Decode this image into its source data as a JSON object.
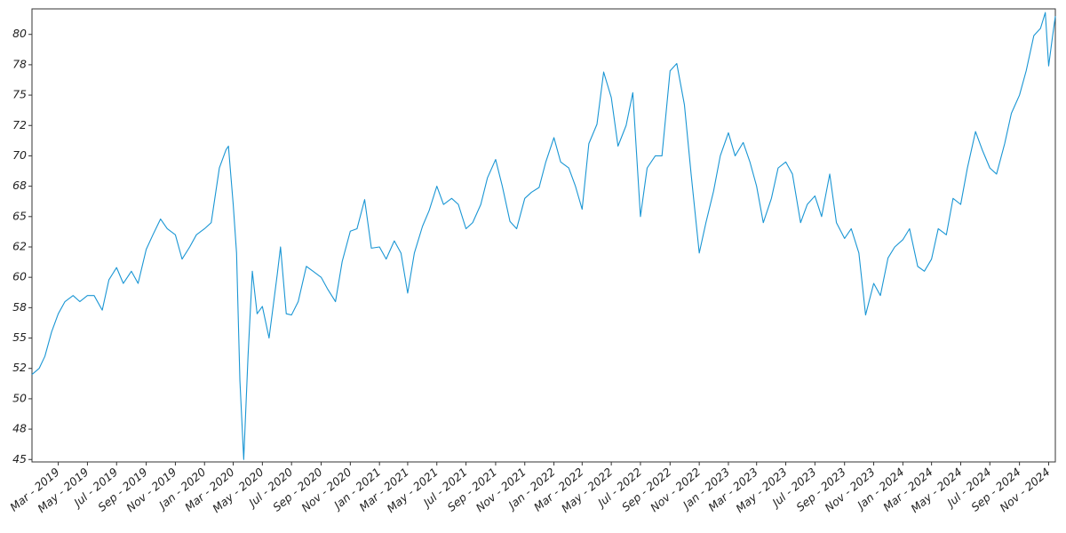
{
  "chart_data": {
    "type": "line",
    "color": "#1a96d4",
    "x": [
      "2019-01-05",
      "2019-01-20",
      "2019-02-01",
      "2019-02-15",
      "2019-03-01",
      "2019-03-15",
      "2019-04-01",
      "2019-04-15",
      "2019-05-01",
      "2019-05-15",
      "2019-06-01",
      "2019-06-15",
      "2019-07-01",
      "2019-07-15",
      "2019-08-01",
      "2019-08-15",
      "2019-09-01",
      "2019-09-15",
      "2019-10-01",
      "2019-10-15",
      "2019-11-01",
      "2019-11-15",
      "2019-12-01",
      "2019-12-15",
      "2020-01-01",
      "2020-01-15",
      "2020-02-01",
      "2020-02-15",
      "2020-02-20",
      "2020-03-01",
      "2020-03-08",
      "2020-03-15",
      "2020-03-23",
      "2020-04-01",
      "2020-04-10",
      "2020-04-20",
      "2020-05-01",
      "2020-05-15",
      "2020-06-01",
      "2020-06-08",
      "2020-06-20",
      "2020-07-01",
      "2020-07-15",
      "2020-08-01",
      "2020-08-15",
      "2020-09-01",
      "2020-09-15",
      "2020-10-01",
      "2020-10-15",
      "2020-11-01",
      "2020-11-15",
      "2020-12-01",
      "2020-12-15",
      "2021-01-01",
      "2021-01-15",
      "2021-02-01",
      "2021-02-15",
      "2021-03-01",
      "2021-03-15",
      "2021-04-01",
      "2021-04-15",
      "2021-05-01",
      "2021-05-15",
      "2021-06-01",
      "2021-06-15",
      "2021-07-01",
      "2021-07-15",
      "2021-08-01",
      "2021-08-15",
      "2021-09-01",
      "2021-09-15",
      "2021-10-01",
      "2021-10-15",
      "2021-11-01",
      "2021-11-15",
      "2021-12-01",
      "2021-12-15",
      "2022-01-01",
      "2022-01-15",
      "2022-02-01",
      "2022-02-15",
      "2022-03-01",
      "2022-03-15",
      "2022-04-01",
      "2022-04-15",
      "2022-05-01",
      "2022-05-15",
      "2022-06-01",
      "2022-06-15",
      "2022-07-01",
      "2022-07-15",
      "2022-08-01",
      "2022-08-15",
      "2022-09-01",
      "2022-09-15",
      "2022-10-01",
      "2022-10-15",
      "2022-11-01",
      "2022-11-15",
      "2022-12-01",
      "2022-12-15",
      "2023-01-01",
      "2023-01-15",
      "2023-02-01",
      "2023-02-15",
      "2023-03-01",
      "2023-03-15",
      "2023-04-01",
      "2023-04-15",
      "2023-05-01",
      "2023-05-15",
      "2023-06-01",
      "2023-06-15",
      "2023-07-01",
      "2023-07-15",
      "2023-08-01",
      "2023-08-15",
      "2023-09-01",
      "2023-09-15",
      "2023-10-01",
      "2023-10-15",
      "2023-11-01",
      "2023-11-15",
      "2023-12-01",
      "2023-12-15",
      "2024-01-01",
      "2024-01-15",
      "2024-02-01",
      "2024-02-15",
      "2024-03-01",
      "2024-03-15",
      "2024-04-01",
      "2024-04-15",
      "2024-05-01",
      "2024-05-15",
      "2024-06-01",
      "2024-06-15",
      "2024-07-01",
      "2024-07-15",
      "2024-08-01",
      "2024-08-15",
      "2024-09-01",
      "2024-09-15",
      "2024-10-01",
      "2024-10-15",
      "2024-10-25",
      "2024-11-01",
      "2024-11-08",
      "2024-11-15"
    ],
    "values": [
      52,
      52.5,
      53.5,
      55.5,
      57,
      58,
      58.5,
      58,
      58.5,
      58.5,
      57.3,
      59.8,
      60.8,
      59.5,
      60.5,
      59.5,
      62.3,
      63.5,
      64.8,
      64,
      63.5,
      61.5,
      62.5,
      63.5,
      64,
      64.5,
      69,
      70.5,
      70.8,
      66,
      62,
      51.5,
      45,
      53.5,
      60.5,
      57,
      57.6,
      55,
      60.2,
      62.5,
      57,
      56.9,
      58,
      60.9,
      60.5,
      60,
      59,
      58,
      61.3,
      63.8,
      64,
      66.4,
      62.4,
      62.5,
      61.5,
      63,
      62,
      58.7,
      62,
      64.2,
      65.5,
      67.5,
      66,
      66.5,
      66,
      64,
      64.5,
      66,
      68.2,
      69.7,
      67.5,
      64.6,
      64,
      66.5,
      67,
      67.4,
      69.5,
      71.5,
      69.5,
      69,
      67.5,
      65.6,
      71,
      72.6,
      76.9,
      74.8,
      70.8,
      72.5,
      75.2,
      65,
      69,
      70,
      70,
      77,
      77.6,
      74.2,
      68.5,
      62,
      64.5,
      67.1,
      70,
      71.9,
      70,
      71.1,
      69.5,
      67.5,
      64.5,
      66.5,
      69,
      69.5,
      68.5,
      64.5,
      66,
      66.7,
      65,
      68.5,
      64.5,
      63.2,
      64,
      62,
      56.9,
      59.5,
      58.5,
      61.6,
      62.5,
      63.1,
      64,
      60.9,
      60.5,
      61.5,
      64,
      63.5,
      66.5,
      66,
      69,
      72,
      70.5,
      69,
      68.5,
      71,
      73.5,
      75,
      77,
      79.9,
      80.5,
      81.8,
      77.4,
      79.5,
      81.5
    ],
    "xlim": [
      "2019-01-05",
      "2024-11-15"
    ],
    "xticks": [
      {
        "value": "2019-03-01",
        "label": "Mar - 2019"
      },
      {
        "value": "2019-05-01",
        "label": "May - 2019"
      },
      {
        "value": "2019-07-01",
        "label": "Jul - 2019"
      },
      {
        "value": "2019-09-01",
        "label": "Sep - 2019"
      },
      {
        "value": "2019-11-01",
        "label": "Nov - 2019"
      },
      {
        "value": "2020-01-01",
        "label": "Jan - 2020"
      },
      {
        "value": "2020-03-01",
        "label": "Mar - 2020"
      },
      {
        "value": "2020-05-01",
        "label": "May - 2020"
      },
      {
        "value": "2020-07-01",
        "label": "Jul - 2020"
      },
      {
        "value": "2020-09-01",
        "label": "Sep - 2020"
      },
      {
        "value": "2020-11-01",
        "label": "Nov - 2020"
      },
      {
        "value": "2021-01-01",
        "label": "Jan - 2021"
      },
      {
        "value": "2021-03-01",
        "label": "Mar - 2021"
      },
      {
        "value": "2021-05-01",
        "label": "May - 2021"
      },
      {
        "value": "2021-07-01",
        "label": "Jul - 2021"
      },
      {
        "value": "2021-09-01",
        "label": "Sep - 2021"
      },
      {
        "value": "2021-11-01",
        "label": "Nov - 2021"
      },
      {
        "value": "2022-01-01",
        "label": "Jan - 2022"
      },
      {
        "value": "2022-03-01",
        "label": "Mar - 2022"
      },
      {
        "value": "2022-05-01",
        "label": "May - 2022"
      },
      {
        "value": "2022-07-01",
        "label": "Jul - 2022"
      },
      {
        "value": "2022-09-01",
        "label": "Sep - 2022"
      },
      {
        "value": "2022-11-01",
        "label": "Nov - 2022"
      },
      {
        "value": "2023-01-01",
        "label": "Jan - 2023"
      },
      {
        "value": "2023-03-01",
        "label": "Mar - 2023"
      },
      {
        "value": "2023-05-01",
        "label": "May - 2023"
      },
      {
        "value": "2023-07-01",
        "label": "Jul - 2023"
      },
      {
        "value": "2023-09-01",
        "label": "Sep - 2023"
      },
      {
        "value": "2023-11-01",
        "label": "Nov - 2023"
      },
      {
        "value": "2024-01-01",
        "label": "Jan - 2024"
      },
      {
        "value": "2024-03-01",
        "label": "Mar - 2024"
      },
      {
        "value": "2024-05-01",
        "label": "May - 2024"
      },
      {
        "value": "2024-07-01",
        "label": "Jul - 2024"
      },
      {
        "value": "2024-09-01",
        "label": "Sep - 2024"
      },
      {
        "value": "2024-11-01",
        "label": "Nov - 2024"
      }
    ],
    "ylim": [
      44.8,
      82.1
    ],
    "yticks": [
      45,
      {
        "value": 47.5,
        "label": "48"
      },
      50,
      {
        "value": 52.5,
        "label": "52"
      },
      55,
      {
        "value": 57.5,
        "label": "58"
      },
      60,
      {
        "value": 62.5,
        "label": "62"
      },
      65,
      {
        "value": 67.5,
        "label": "68"
      },
      70,
      {
        "value": 72.5,
        "label": "72"
      },
      75,
      {
        "value": 77.5,
        "label": "78"
      },
      80
    ],
    "grid": false
  }
}
